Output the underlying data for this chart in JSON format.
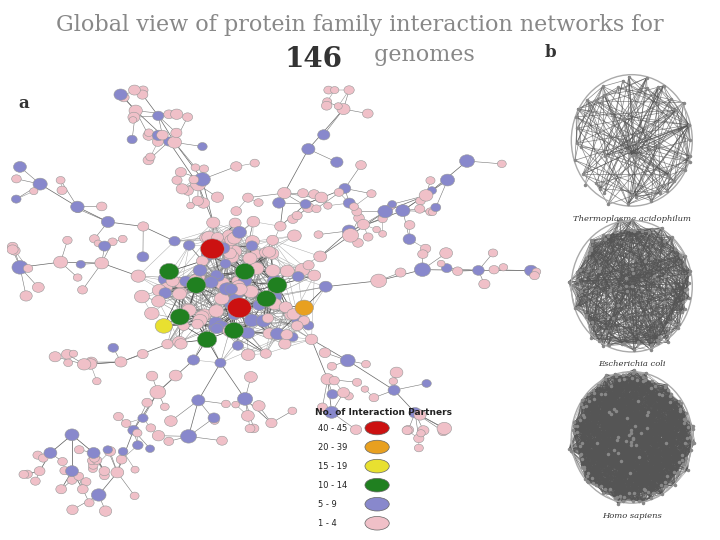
{
  "title_line1": "Global view of protein family interaction networks for",
  "title_line2_bold": "146",
  "title_line2_rest": " genomes",
  "title_fontsize": 16,
  "title_color": "#888888",
  "title_bold_color": "#333333",
  "label_a": "a",
  "label_b": "b",
  "legend_title": "No. of Interaction Partners",
  "legend_items": [
    {
      "label": "40 - 45",
      "color": "#cc1111"
    },
    {
      "label": "20 - 39",
      "color": "#e8a020"
    },
    {
      "label": "15 - 19",
      "color": "#e8e030"
    },
    {
      "label": "10 - 14",
      "color": "#208020"
    },
    {
      "label": "5 - 9",
      "color": "#8888cc"
    },
    {
      "label": "1 - 4",
      "color": "#f0c0c8"
    }
  ],
  "genome_labels": [
    "Thermoplasma acidophilum",
    "Escherichia coli",
    "Homo sapiens"
  ],
  "background_color": "#ffffff",
  "node_pink": "#f0c0c8",
  "node_blue": "#8888cc",
  "edge_color_main": "#555555",
  "edge_color_light": "#aaaaaa"
}
